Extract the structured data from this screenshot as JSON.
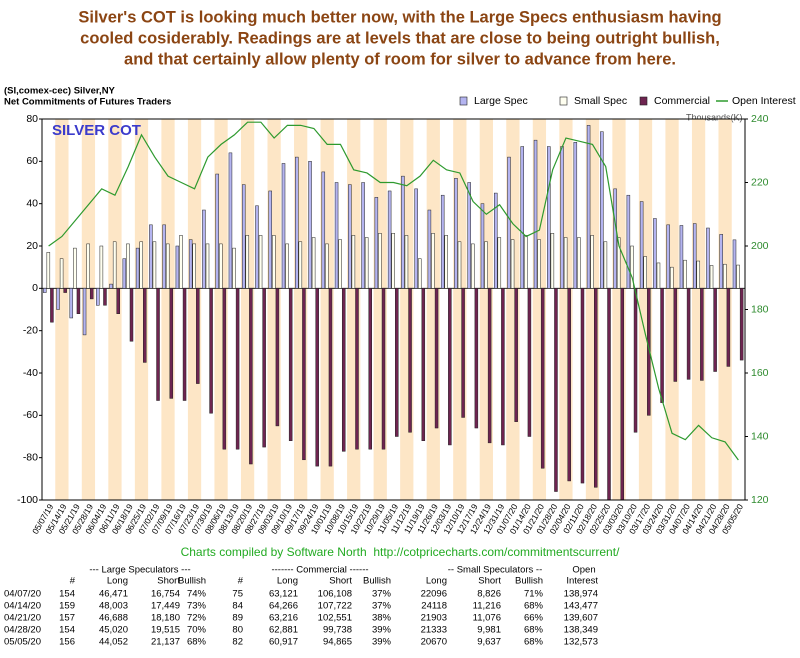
{
  "chart_data": {
    "type": "bar",
    "title_lines": [
      "Silver's COT is looking much better now, with the Large Specs enthusiasm having",
      "cooled cosiderably. Readings are at levels that are close to being outright bullish,",
      "and that certainly allow plenty of room for silver to advance from here."
    ],
    "subtitle_lines": [
      "(SI,comex-cec) Silver,NY",
      "Net Commitments of Futures Traders"
    ],
    "chart_label": "SILVER COT",
    "y2_label": "Thousands(K)",
    "footer": "Charts compiled by Software North  http://cotpricecharts.com/commitmentscurrent/",
    "categories": [
      "05/07/19",
      "05/14/19",
      "05/21/19",
      "05/28/19",
      "06/04/19",
      "06/11/19",
      "06/18/19",
      "06/25/19",
      "07/02/19",
      "07/09/19",
      "07/16/19",
      "07/23/19",
      "07/30/19",
      "08/06/19",
      "08/13/19",
      "08/20/19",
      "08/27/19",
      "09/03/19",
      "09/10/19",
      "09/17/19",
      "09/24/19",
      "10/01/19",
      "10/08/19",
      "10/15/19",
      "10/22/19",
      "10/29/19",
      "11/05/19",
      "11/12/19",
      "11/19/19",
      "11/26/19",
      "12/03/19",
      "12/10/19",
      "12/17/19",
      "12/24/19",
      "12/31/19",
      "01/07/20",
      "01/14/20",
      "01/21/20",
      "01/28/20",
      "02/04/20",
      "02/11/20",
      "02/18/20",
      "02/25/20",
      "03/03/20",
      "03/10/20",
      "03/17/20",
      "03/24/20",
      "03/31/20",
      "04/07/20",
      "04/14/20",
      "04/21/20",
      "04/28/20",
      "05/05/20"
    ],
    "series": [
      {
        "name": "Large Spec",
        "color": "#b4b4f0",
        "values": [
          -2,
          -10,
          -14,
          -22,
          -8,
          2,
          14,
          19,
          30,
          30,
          20,
          23,
          37,
          54,
          64,
          49,
          39,
          46,
          59,
          62,
          60,
          55,
          50,
          49,
          50,
          43,
          46,
          53,
          47,
          37,
          44,
          52,
          50,
          40,
          45,
          62,
          67,
          70,
          67,
          67,
          69,
          77,
          74,
          47,
          44,
          41,
          33,
          30,
          29.7,
          30.6,
          28.5,
          25.5,
          22.9
        ]
      },
      {
        "name": "Small Spec",
        "color": "#fffff0",
        "values": [
          17,
          14,
          19,
          21,
          20,
          22,
          21,
          22,
          22,
          21,
          25,
          21,
          21,
          21,
          19,
          25,
          25,
          25,
          21,
          22,
          24,
          21,
          23,
          25,
          24,
          26,
          26,
          25,
          14,
          26,
          25,
          22,
          21,
          22,
          24,
          23,
          25,
          23,
          26,
          24,
          24,
          25,
          22,
          24,
          20,
          15,
          12,
          10,
          13.3,
          12.9,
          10.8,
          11.4,
          11.0
        ]
      },
      {
        "name": "Commercial",
        "color": "#6e2450",
        "values": [
          -16,
          -2,
          -12,
          -5,
          -8,
          -12,
          -25,
          -35,
          -53,
          -52,
          -53,
          -45,
          -59,
          -76,
          -76,
          -83,
          -75,
          -65,
          -72,
          -81,
          -84,
          -84,
          -77,
          -76,
          -76,
          -76,
          -70,
          -68,
          -72,
          -66,
          -74,
          -61,
          -66,
          -73,
          -74,
          -63,
          -70,
          -85,
          -96,
          -91,
          -92,
          -94,
          -100,
          -100,
          -68,
          -60,
          -54,
          -44,
          -43.0,
          -43.5,
          -39.3,
          -36.9,
          -33.9
        ]
      },
      {
        "name": "Open Interest",
        "color": "#2e9a2e",
        "type": "line",
        "axis": "y2",
        "values": [
          200,
          203,
          208,
          213,
          218,
          216,
          225,
          235,
          228,
          222,
          220,
          218,
          228,
          232,
          235,
          239,
          239,
          234,
          238,
          238,
          237,
          232,
          232,
          224,
          223,
          220,
          220,
          219,
          222,
          227,
          224,
          223,
          214,
          210,
          213,
          207,
          203,
          205,
          224,
          234,
          233,
          232,
          225,
          200,
          190,
          172,
          155,
          141,
          139.0,
          143.5,
          139.6,
          138.3,
          132.6
        ]
      }
    ],
    "ylim": [
      -100,
      80
    ],
    "yticks": [
      -100,
      -80,
      -60,
      -40,
      -20,
      0,
      20,
      40,
      60,
      80
    ],
    "y2lim": [
      120,
      240
    ],
    "y2ticks": [
      120,
      140,
      160,
      180,
      200,
      220,
      240
    ],
    "band_color": "#fde6c6",
    "legend": "top-right"
  },
  "table": {
    "header_groups": [
      "--- Large Speculators ---",
      "------- Commercial ------",
      "-- Small Speculators --",
      "Open"
    ],
    "columns": [
      "#",
      "Long",
      "Short",
      "Bullish",
      "#",
      "Long",
      "Short",
      "Bullish",
      "Long",
      "Short",
      "Bullish",
      "Interest"
    ],
    "rows": [
      [
        "04/07/20",
        "154",
        "46,471",
        "16,754",
        "74%",
        "75",
        "63,121",
        "106,108",
        "37%",
        "22096",
        "8,826",
        "71%",
        "138,974"
      ],
      [
        "04/14/20",
        "159",
        "48,003",
        "17,449",
        "73%",
        "84",
        "64,266",
        "107,722",
        "37%",
        "24118",
        "11,216",
        "68%",
        "143,477"
      ],
      [
        "04/21/20",
        "157",
        "46,688",
        "18,180",
        "72%",
        "89",
        "63,216",
        "102,551",
        "38%",
        "21903",
        "11,076",
        "66%",
        "139,607"
      ],
      [
        "04/28/20",
        "154",
        "45,020",
        "19,515",
        "70%",
        "80",
        "62,881",
        "99,738",
        "39%",
        "21333",
        "9,981",
        "68%",
        "138,349"
      ],
      [
        "05/05/20",
        "156",
        "44,052",
        "21,137",
        "68%",
        "82",
        "60,917",
        "94,865",
        "39%",
        "20670",
        "9,637",
        "68%",
        "132,573"
      ]
    ]
  }
}
